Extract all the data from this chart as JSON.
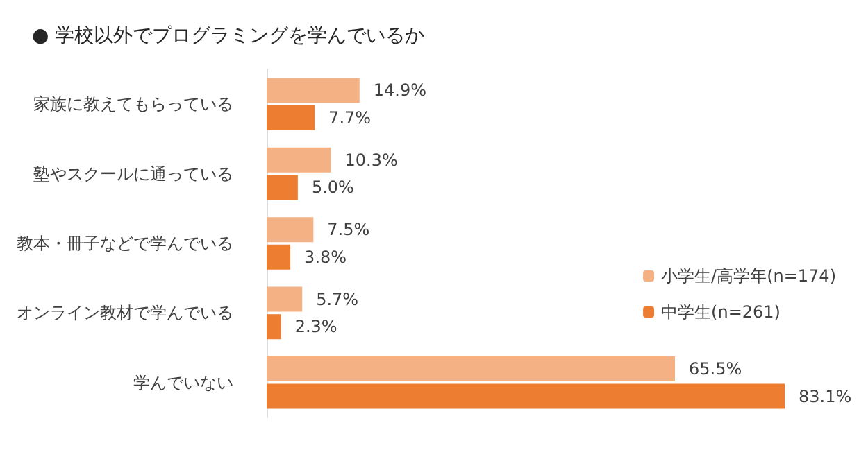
{
  "chart_data": {
    "type": "bar",
    "orientation": "horizontal",
    "title": "● 学校以外でプログラミングを学んでいるか",
    "categories": [
      "家族に教えてもらっている",
      "塾やスクールに通っている",
      "教本・冊子などで学んでいる",
      "オンライン教材で学んでいる",
      "学んでいない"
    ],
    "series": [
      {
        "name": "小学生/高学年(n=174)",
        "color": "#f4b183",
        "values": [
          14.9,
          10.3,
          7.5,
          5.7,
          65.5
        ],
        "value_labels": [
          "14.9%",
          "10.3%",
          "7.5%",
          "5.7%",
          "65.5%"
        ]
      },
      {
        "name": "中学生(n=261)",
        "color": "#ed7d31",
        "values": [
          7.7,
          5.0,
          3.8,
          2.3,
          83.1
        ],
        "value_labels": [
          "7.7%",
          "5.0%",
          "3.8%",
          "2.3%",
          "83.1%"
        ]
      }
    ],
    "legend": "right",
    "grid": false,
    "tick_labels": "y"
  }
}
